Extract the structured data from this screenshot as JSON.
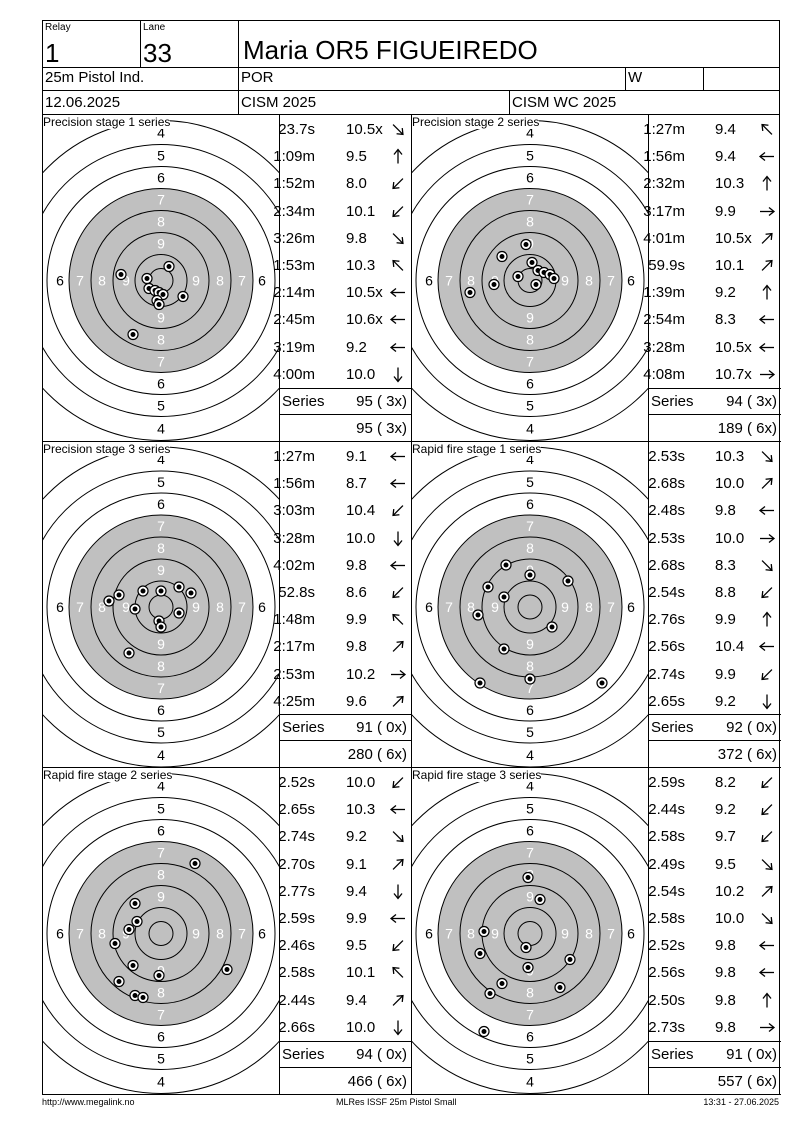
{
  "header": {
    "relay_label": "Relay",
    "relay": "1",
    "lane_label": "Lane",
    "lane": "33",
    "name": "Maria OR5 FIGUEIREDO",
    "event": "25m Pistol Ind.",
    "country": "POR",
    "gender": "W",
    "date": "12.06.2025",
    "competition": "CISM 2025",
    "match": "CISM WC 2025"
  },
  "target": {
    "ring_numbers": [
      "4",
      "5",
      "6",
      "7",
      "8",
      "9",
      "9",
      "8",
      "7",
      "6",
      "5",
      "4"
    ],
    "side_numbers": [
      "6",
      "7",
      "8",
      "9",
      "9",
      "8",
      "7",
      "6"
    ]
  },
  "stages": [
    {
      "title": "Precision stage 1 series",
      "shots": [
        {
          "time": "23.7s",
          "score": "10.5x",
          "arrow": "se"
        },
        {
          "time": "1:09m",
          "score": "9.5",
          "arrow": "n"
        },
        {
          "time": "1:52m",
          "score": "8.0",
          "arrow": "sw"
        },
        {
          "time": "2:34m",
          "score": "10.1",
          "arrow": "sw"
        },
        {
          "time": "3:26m",
          "score": "9.8",
          "arrow": "se"
        },
        {
          "time": "1:53m",
          "score": "10.3",
          "arrow": "nw"
        },
        {
          "time": "2:14m",
          "score": "10.5x",
          "arrow": "w"
        },
        {
          "time": "2:45m",
          "score": "10.6x",
          "arrow": "w"
        },
        {
          "time": "3:19m",
          "score": "9.2",
          "arrow": "w"
        },
        {
          "time": "4:00m",
          "score": "10.0",
          "arrow": "s"
        }
      ],
      "series_label": "Series",
      "series": "95 ( 3x)",
      "total": "95 ( 3x)",
      "impacts": [
        [
          8,
          -14
        ],
        [
          -14,
          -2
        ],
        [
          -12,
          8
        ],
        [
          -6,
          10
        ],
        [
          -2,
          12
        ],
        [
          2,
          14
        ],
        [
          -4,
          20
        ],
        [
          -2,
          24
        ],
        [
          -40,
          -6
        ],
        [
          22,
          16
        ],
        [
          -28,
          54
        ]
      ]
    },
    {
      "title": "Precision stage 2 series",
      "shots": [
        {
          "time": "1:27m",
          "score": "9.4",
          "arrow": "nw"
        },
        {
          "time": "1:56m",
          "score": "9.4",
          "arrow": "w"
        },
        {
          "time": "2:32m",
          "score": "10.3",
          "arrow": "n"
        },
        {
          "time": "3:17m",
          "score": "9.9",
          "arrow": "e"
        },
        {
          "time": "4:01m",
          "score": "10.5x",
          "arrow": "ne"
        },
        {
          "time": "59.9s",
          "score": "10.1",
          "arrow": "ne"
        },
        {
          "time": "1:39m",
          "score": "9.2",
          "arrow": "n"
        },
        {
          "time": "2:54m",
          "score": "8.3",
          "arrow": "w"
        },
        {
          "time": "3:28m",
          "score": "10.5x",
          "arrow": "w"
        },
        {
          "time": "4:08m",
          "score": "10.7x",
          "arrow": "e"
        }
      ],
      "series_label": "Series",
      "series": "94 ( 3x)",
      "total": "189 ( 6x)",
      "impacts": [
        [
          -4,
          -36
        ],
        [
          -28,
          -24
        ],
        [
          2,
          -18
        ],
        [
          8,
          -10
        ],
        [
          14,
          -8
        ],
        [
          20,
          -6
        ],
        [
          24,
          -2
        ],
        [
          -12,
          -4
        ],
        [
          6,
          4
        ],
        [
          -36,
          4
        ],
        [
          -60,
          12
        ]
      ]
    },
    {
      "title": "Precision stage 3 series",
      "shots": [
        {
          "time": "1:27m",
          "score": "9.1",
          "arrow": "w"
        },
        {
          "time": "1:56m",
          "score": "8.7",
          "arrow": "w"
        },
        {
          "time": "3:03m",
          "score": "10.4",
          "arrow": "sw"
        },
        {
          "time": "3:28m",
          "score": "10.0",
          "arrow": "s"
        },
        {
          "time": "4:02m",
          "score": "9.8",
          "arrow": "w"
        },
        {
          "time": "52.8s",
          "score": "8.6",
          "arrow": "sw"
        },
        {
          "time": "1:48m",
          "score": "9.9",
          "arrow": "nw"
        },
        {
          "time": "2:17m",
          "score": "9.8",
          "arrow": "ne"
        },
        {
          "time": "2:53m",
          "score": "10.2",
          "arrow": "e"
        },
        {
          "time": "4:25m",
          "score": "9.6",
          "arrow": "ne"
        }
      ],
      "series_label": "Series",
      "series": "91 ( 0x)",
      "total": "280 ( 6x)",
      "impacts": [
        [
          -18,
          -16
        ],
        [
          0,
          -16
        ],
        [
          18,
          -20
        ],
        [
          30,
          -14
        ],
        [
          -42,
          -12
        ],
        [
          -52,
          -6
        ],
        [
          -26,
          2
        ],
        [
          18,
          6
        ],
        [
          -2,
          14
        ],
        [
          0,
          20
        ],
        [
          -32,
          46
        ]
      ]
    },
    {
      "title": "Rapid fire stage 1 series",
      "shots": [
        {
          "time": "2.53s",
          "score": "10.3",
          "arrow": "se"
        },
        {
          "time": "2.68s",
          "score": "10.0",
          "arrow": "ne"
        },
        {
          "time": "2.48s",
          "score": "9.8",
          "arrow": "w"
        },
        {
          "time": "2.53s",
          "score": "10.0",
          "arrow": "e"
        },
        {
          "time": "2.68s",
          "score": "8.3",
          "arrow": "se"
        },
        {
          "time": "2.54s",
          "score": "8.8",
          "arrow": "sw"
        },
        {
          "time": "2.76s",
          "score": "9.9",
          "arrow": "n"
        },
        {
          "time": "2.56s",
          "score": "10.4",
          "arrow": "w"
        },
        {
          "time": "2.74s",
          "score": "9.9",
          "arrow": "sw"
        },
        {
          "time": "2.65s",
          "score": "9.2",
          "arrow": "s"
        }
      ],
      "series_label": "Series",
      "series": "92 ( 0x)",
      "total": "372 ( 6x)",
      "impacts": [
        [
          -24,
          -42
        ],
        [
          -42,
          -20
        ],
        [
          -26,
          -10
        ],
        [
          38,
          -26
        ],
        [
          0,
          -32
        ],
        [
          -52,
          8
        ],
        [
          22,
          20
        ],
        [
          -26,
          42
        ],
        [
          0,
          72
        ],
        [
          -50,
          76
        ],
        [
          72,
          76
        ]
      ]
    },
    {
      "title": "Rapid fire stage 2 series",
      "shots": [
        {
          "time": "2.52s",
          "score": "10.0",
          "arrow": "sw"
        },
        {
          "time": "2.65s",
          "score": "10.3",
          "arrow": "w"
        },
        {
          "time": "2.74s",
          "score": "9.2",
          "arrow": "se"
        },
        {
          "time": "2.70s",
          "score": "9.1",
          "arrow": "ne"
        },
        {
          "time": "2.77s",
          "score": "9.4",
          "arrow": "s"
        },
        {
          "time": "2.59s",
          "score": "9.9",
          "arrow": "w"
        },
        {
          "time": "2.46s",
          "score": "9.5",
          "arrow": "sw"
        },
        {
          "time": "2.58s",
          "score": "10.1",
          "arrow": "nw"
        },
        {
          "time": "2.44s",
          "score": "9.4",
          "arrow": "ne"
        },
        {
          "time": "2.66s",
          "score": "10.0",
          "arrow": "s"
        }
      ],
      "series_label": "Series",
      "series": "94 ( 0x)",
      "total": "466 ( 6x)",
      "impacts": [
        [
          34,
          -70
        ],
        [
          -26,
          -30
        ],
        [
          -24,
          -12
        ],
        [
          -32,
          -4
        ],
        [
          -46,
          10
        ],
        [
          -28,
          32
        ],
        [
          -2,
          42
        ],
        [
          66,
          36
        ],
        [
          -42,
          48
        ],
        [
          -26,
          62
        ],
        [
          -18,
          64
        ]
      ]
    },
    {
      "title": "Rapid fire stage 3 series",
      "shots": [
        {
          "time": "2.59s",
          "score": "8.2",
          "arrow": "sw"
        },
        {
          "time": "2.44s",
          "score": "9.2",
          "arrow": "sw"
        },
        {
          "time": "2.58s",
          "score": "9.7",
          "arrow": "sw"
        },
        {
          "time": "2.49s",
          "score": "9.5",
          "arrow": "se"
        },
        {
          "time": "2.54s",
          "score": "10.2",
          "arrow": "ne"
        },
        {
          "time": "2.58s",
          "score": "10.0",
          "arrow": "se"
        },
        {
          "time": "2.52s",
          "score": "9.8",
          "arrow": "w"
        },
        {
          "time": "2.56s",
          "score": "9.8",
          "arrow": "w"
        },
        {
          "time": "2.50s",
          "score": "9.8",
          "arrow": "n"
        },
        {
          "time": "2.73s",
          "score": "9.8",
          "arrow": "e"
        }
      ],
      "series_label": "Series",
      "series": "91 ( 0x)",
      "total": "557 ( 6x)",
      "impacts": [
        [
          -2,
          -56
        ],
        [
          10,
          -34
        ],
        [
          -46,
          -2
        ],
        [
          -50,
          20
        ],
        [
          -2,
          34
        ],
        [
          40,
          26
        ],
        [
          -28,
          50
        ],
        [
          30,
          54
        ],
        [
          -40,
          60
        ],
        [
          -46,
          98
        ],
        [
          -4,
          14
        ]
      ]
    }
  ],
  "footer": {
    "url": "http://www.megalink.no",
    "software": "MLRes ISSF 25m Pistol Small",
    "timestamp": "13:31 - 27.06.2025"
  }
}
